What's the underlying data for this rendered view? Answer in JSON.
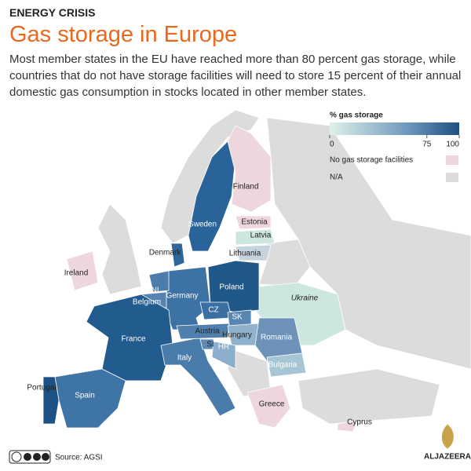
{
  "header": {
    "kicker": "ENERGY CRISIS",
    "title": "Gas storage in Europe",
    "subtitle": "Most member states in the EU have reached more than 80 percent gas storage, while countries that do not have storage facilities will need to store 15 percent of their annual domestic gas consumption in stocks located in other member states."
  },
  "legend": {
    "title": "% gas storage",
    "ticks": [
      0,
      75,
      100
    ],
    "categories": [
      "No gas storage facilities",
      "N/A"
    ]
  },
  "map": {
    "labels": [
      "Finland",
      "Estonia",
      "Latvia",
      "Sweden",
      "Lithuania",
      "Denmark",
      "Ireland",
      "Poland",
      "NL",
      "Belgium",
      "Germany",
      "Ukraine",
      "CZ",
      "SK",
      "France",
      "Austria",
      "Hungary",
      "Romania",
      "SI",
      "HR",
      "Italy",
      "Bulgaria",
      "Portugal",
      "Spain",
      "Greece",
      "Cyprus"
    ]
  },
  "footer": {
    "source": "Source: AGSI",
    "logo": "ALJAZEERA"
  }
}
